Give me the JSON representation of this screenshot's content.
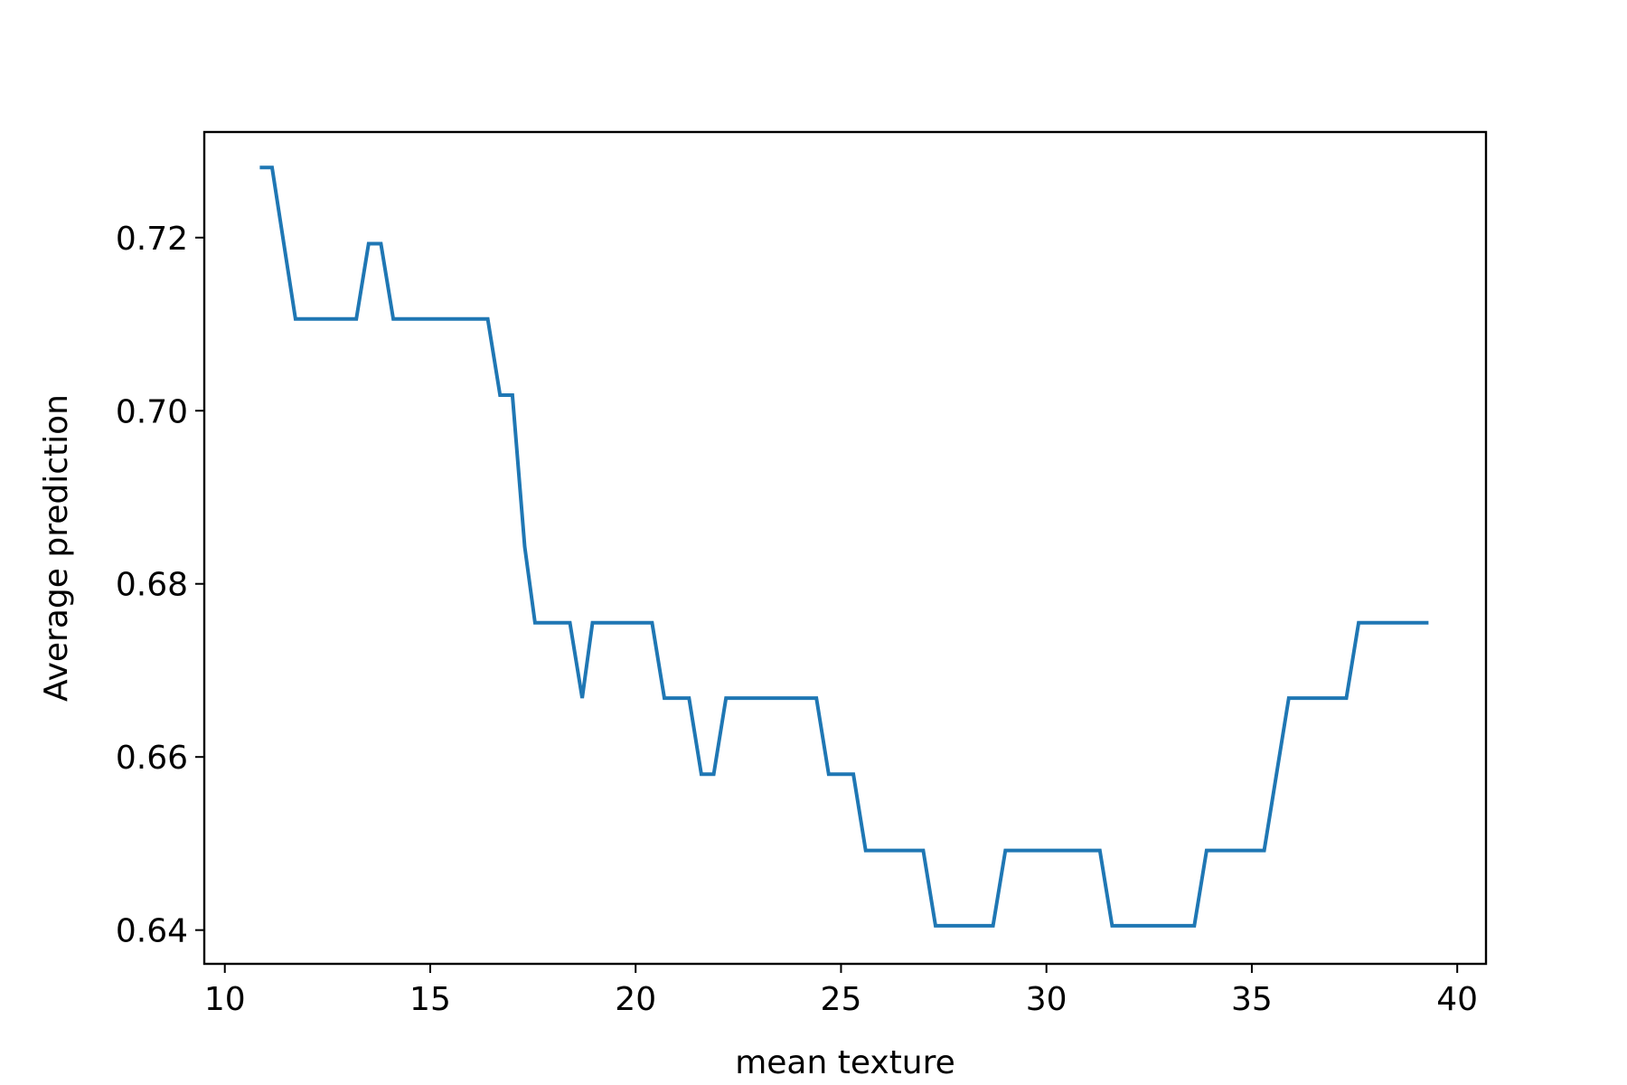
{
  "chart_data": {
    "type": "line",
    "title": "",
    "xlabel": "mean texture",
    "ylabel": "Average prediction",
    "xlim": [
      9.5,
      40.7
    ],
    "ylim": [
      0.6361,
      0.7322
    ],
    "xticks": [
      10,
      15,
      20,
      25,
      30,
      35,
      40
    ],
    "xtick_labels": [
      "10",
      "15",
      "20",
      "25",
      "30",
      "35",
      "40"
    ],
    "yticks": [
      0.64,
      0.66,
      0.68,
      0.7,
      0.72
    ],
    "ytick_labels": [
      "0.64",
      "0.66",
      "0.68",
      "0.70",
      "0.72"
    ],
    "grid": false,
    "legend": "none",
    "series": [
      {
        "color": "#1f77b4",
        "x": [
          10.85,
          11.15,
          11.72,
          13.2,
          13.5,
          13.8,
          14.1,
          16.4,
          16.7,
          17.0,
          17.3,
          17.55,
          18.4,
          18.7,
          18.95,
          20.4,
          20.7,
          21.3,
          21.6,
          21.9,
          22.2,
          24.4,
          24.7,
          25.3,
          25.6,
          27.0,
          27.3,
          28.7,
          29.0,
          31.3,
          31.6,
          33.6,
          33.9,
          35.3,
          35.9,
          37.3,
          37.6,
          39.3
        ],
        "y": [
          0.7281,
          0.7281,
          0.7106,
          0.7106,
          0.7193,
          0.7193,
          0.7106,
          0.7106,
          0.7018,
          0.7018,
          0.6843,
          0.6755,
          0.6755,
          0.6668,
          0.6755,
          0.6755,
          0.6668,
          0.6668,
          0.658,
          0.658,
          0.6668,
          0.6668,
          0.658,
          0.658,
          0.6492,
          0.6492,
          0.6405,
          0.6405,
          0.6492,
          0.6492,
          0.6405,
          0.6405,
          0.6492,
          0.6492,
          0.6668,
          0.6668,
          0.6755,
          0.6755
        ]
      }
    ]
  }
}
